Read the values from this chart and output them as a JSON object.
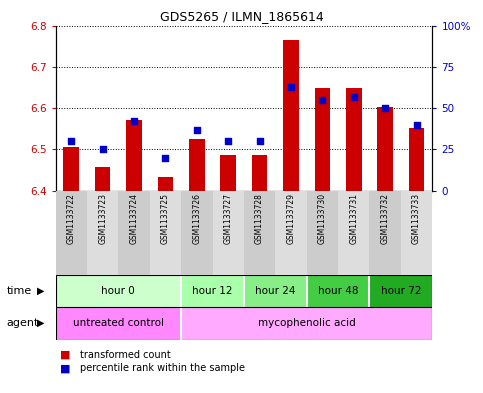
{
  "title": "GDS5265 / ILMN_1865614",
  "samples": [
    "GSM1133722",
    "GSM1133723",
    "GSM1133724",
    "GSM1133725",
    "GSM1133726",
    "GSM1133727",
    "GSM1133728",
    "GSM1133729",
    "GSM1133730",
    "GSM1133731",
    "GSM1133732",
    "GSM1133733"
  ],
  "bar_values": [
    6.505,
    6.458,
    6.572,
    6.432,
    6.525,
    6.487,
    6.487,
    6.765,
    6.648,
    6.648,
    6.602,
    6.552
  ],
  "bar_base": 6.4,
  "dot_values_pct": [
    30,
    25,
    42,
    20,
    37,
    30,
    30,
    63,
    55,
    57,
    50,
    40
  ],
  "ylim_left": [
    6.4,
    6.8
  ],
  "ylim_right": [
    0,
    100
  ],
  "yticks_left": [
    6.4,
    6.5,
    6.6,
    6.7,
    6.8
  ],
  "yticks_right": [
    0,
    25,
    50,
    75,
    100
  ],
  "ytick_labels_right": [
    "0",
    "25",
    "50",
    "75",
    "100%"
  ],
  "bar_color": "#cc0000",
  "dot_color": "#0000cc",
  "time_groups": [
    {
      "label": "hour 0",
      "start": 0,
      "end": 3,
      "color": "#ccffcc"
    },
    {
      "label": "hour 12",
      "start": 4,
      "end": 5,
      "color": "#aaffaa"
    },
    {
      "label": "hour 24",
      "start": 6,
      "end": 7,
      "color": "#88ee88"
    },
    {
      "label": "hour 48",
      "start": 8,
      "end": 9,
      "color": "#44cc44"
    },
    {
      "label": "hour 72",
      "start": 10,
      "end": 11,
      "color": "#22aa22"
    }
  ],
  "legend_bar_label": "transformed count",
  "legend_dot_label": "percentile rank within the sample",
  "time_label": "time",
  "agent_label": "agent",
  "bg_color": "#ffffff",
  "plot_bg": "#ffffff",
  "tick_color_left": "#cc0000",
  "tick_color_right": "#0000cc",
  "agent_untreated_color": "#ff88ff",
  "agent_myco_color": "#ffaaff",
  "sample_bg_even": "#cccccc",
  "sample_bg_odd": "#dddddd"
}
